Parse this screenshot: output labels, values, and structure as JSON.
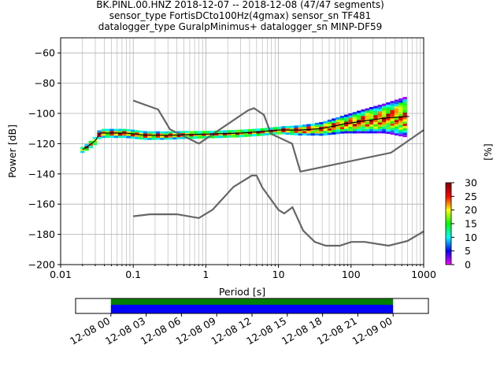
{
  "header": {
    "line1": "BK.PINL.00.HNZ   2018-12-07 -- 2018-12-08  (47/47 segments)",
    "line2": "sensor_type FortisDCto100Hz(4gmax) sensor_sn TF481",
    "line3": "datalogger_type GuralpMinimus+ datalogger_sn MINP-DF59"
  },
  "chart_data": [
    {
      "type": "heatmap",
      "subtype": "probabilistic-power-spectral-density",
      "xlabel": "Period [s]",
      "ylabel": "Power [dB]",
      "xscale": "log",
      "xlim": [
        0.01,
        1000
      ],
      "ylim": [
        -200,
        -50
      ],
      "x_ticks": [
        0.01,
        0.1,
        1,
        10,
        100,
        1000
      ],
      "x_tick_labels": [
        "0.01",
        "0.1",
        "1",
        "10",
        "100",
        "1000"
      ],
      "y_ticks": [
        -60,
        -80,
        -100,
        -120,
        -140,
        -160,
        -180,
        -200
      ],
      "y_tick_labels": [
        "−60",
        "−80",
        "−100",
        "−120",
        "−140",
        "−160",
        "−180",
        "−200"
      ],
      "grid": true,
      "colorbar": {
        "label": "[%]",
        "min": 0,
        "max": 30,
        "ticks": [
          0,
          5,
          10,
          15,
          20,
          25,
          30
        ],
        "colors": [
          "#ff00ff",
          "#0000ff",
          "#00ffff",
          "#00ff00",
          "#ffff00",
          "#ff0000",
          "#800000"
        ]
      },
      "noise_model_color": "#666666",
      "noise_models": [
        {
          "period": [
            0.1,
            0.17,
            0.4,
            0.8,
            1.24,
            2.4,
            4.3,
            5,
            6,
            10,
            12,
            15.6,
            21.9,
            31.6,
            45,
            70,
            101,
            154,
            328,
            600,
            1000
          ],
          "power": [
            -168,
            -166.7,
            -166.7,
            -169.2,
            -163.7,
            -148.6,
            -141.1,
            -141.1,
            -149,
            -163.8,
            -166.2,
            -162.1,
            -177.5,
            -185,
            -187.5,
            -187.5,
            -185,
            -185,
            -187.5,
            -184.4,
            -178
          ]
        },
        {
          "period": [
            0.1,
            0.22,
            0.32,
            0.8,
            3.8,
            4.6,
            6.3,
            7.9,
            15.4,
            20,
            354.8,
            1000
          ],
          "power": [
            -91.5,
            -97.4,
            -110.5,
            -120,
            -98,
            -96.5,
            -101,
            -113.5,
            -120,
            -138.5,
            -126,
            -111
          ]
        }
      ],
      "ppsd_mode": {
        "period": [
          0.02,
          0.025,
          0.03,
          0.035,
          0.05,
          0.08,
          0.15,
          0.3,
          0.6,
          1.5,
          3,
          6,
          10,
          20,
          40,
          80,
          150,
          300,
          630
        ],
        "power": [
          -124,
          -121,
          -118,
          -113,
          -113,
          -113,
          -114.5,
          -114.5,
          -114,
          -113.5,
          -113,
          -112,
          -111,
          -111,
          -110,
          -107,
          -105,
          -103,
          -102
        ]
      },
      "ppsd_spread_db": {
        "period": [
          0.02,
          0.035,
          0.1,
          1,
          10,
          30,
          80,
          150,
          300,
          630
        ],
        "spread": [
          2,
          3,
          3,
          2.5,
          2.5,
          4,
          6,
          8,
          10,
          14
        ]
      }
    },
    {
      "type": "timeline",
      "x_tick_labels": [
        "12-08 00",
        "12-08 03",
        "12-08 06",
        "12-08 09",
        "12-08 12",
        "12-08 15",
        "12-08 18",
        "12-08 21",
        "12-09 00"
      ],
      "x_range_hours": [
        -3,
        27
      ],
      "covered_hours": [
        0,
        24
      ],
      "band_colors": [
        "#008000",
        "#0000ff"
      ]
    }
  ]
}
